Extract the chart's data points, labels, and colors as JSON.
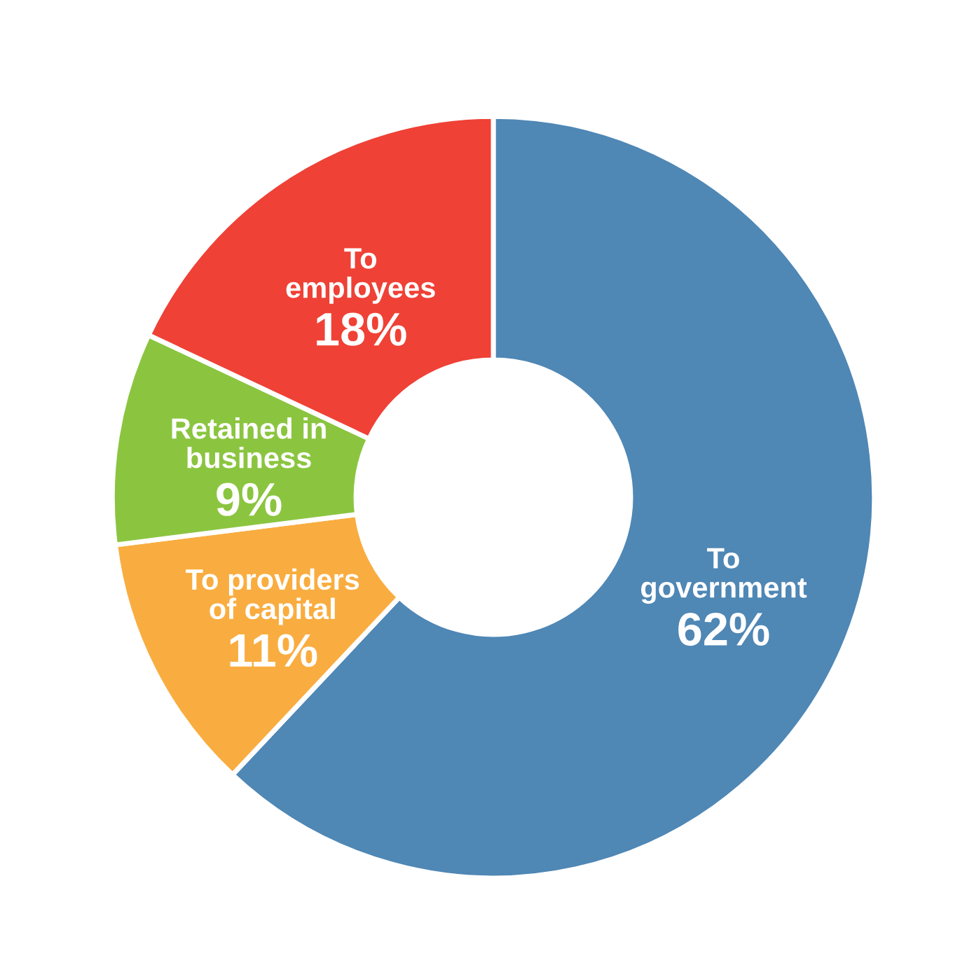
{
  "chart_data": {
    "type": "donut",
    "categories": [
      "To\ngovernment",
      "To providers\nof capital",
      "Retained in\nbusiness",
      "To\nemployees"
    ],
    "values": [
      62,
      11,
      9,
      18
    ],
    "colors": [
      "#4f87b5",
      "#f9ad40",
      "#8bc540",
      "#ef4136"
    ],
    "value_labels": [
      "62%",
      "11%",
      "9%",
      "18%"
    ],
    "legend": false
  }
}
